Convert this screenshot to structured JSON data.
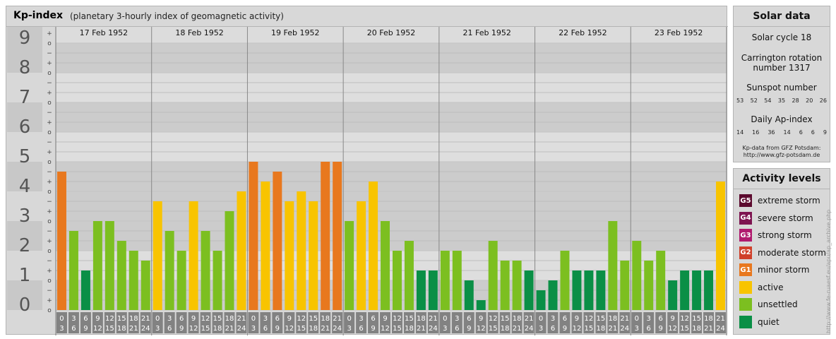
{
  "header": {
    "title": "Kp-index",
    "subtitle": "(planetary 3-hourly index of geomagnetic activity)"
  },
  "chart_data": {
    "type": "bar",
    "title": "Kp-index",
    "subtitle": "(planetary 3-hourly index of geomagnetic activity)",
    "y_major_ticks": [
      "0",
      "1",
      "2",
      "3",
      "4",
      "5",
      "6",
      "7",
      "8",
      "9"
    ],
    "y_minor_marks": [
      "+",
      "o",
      "−"
    ],
    "ylim": [
      0,
      9.33
    ],
    "days": [
      "17 Feb 1952",
      "18 Feb 1952",
      "19 Feb 1952",
      "20 Feb 1952",
      "21 Feb 1952",
      "22 Feb 1952",
      "23 Feb 1952"
    ],
    "interval_labels": [
      [
        "0",
        "3"
      ],
      [
        "3",
        "6"
      ],
      [
        "6",
        "9"
      ],
      [
        "9",
        "12"
      ],
      [
        "12",
        "15"
      ],
      [
        "15",
        "18"
      ],
      [
        "18",
        "21"
      ],
      [
        "21",
        "24"
      ]
    ],
    "values": [
      [
        4.667,
        2.667,
        1.333,
        3.0,
        3.0,
        2.333,
        2.0,
        1.667
      ],
      [
        3.667,
        2.667,
        2.0,
        3.667,
        2.667,
        2.0,
        3.333,
        4.0
      ],
      [
        5.0,
        4.333,
        4.667,
        3.667,
        4.0,
        3.667,
        5.0,
        5.0
      ],
      [
        3.0,
        3.667,
        4.333,
        3.0,
        2.0,
        2.333,
        1.333,
        1.333
      ],
      [
        2.0,
        2.0,
        1.0,
        0.333,
        2.333,
        1.667,
        1.667,
        1.333
      ],
      [
        0.667,
        1.0,
        2.0,
        1.333,
        1.333,
        1.333,
        3.0,
        1.667
      ],
      [
        2.333,
        1.667,
        2.0,
        1.0,
        1.333,
        1.333,
        1.333,
        4.333
      ]
    ],
    "grid": true,
    "legend": "right"
  },
  "solar": {
    "title": "Solar data",
    "cycle": "Solar cycle 18",
    "carrington_line1": "Carrington rotation",
    "carrington_line2": "number 1317",
    "sunspot_label": "Sunspot number",
    "sunspot_values": [
      "53",
      "52",
      "54",
      "35",
      "28",
      "20",
      "26"
    ],
    "ap_label": "Daily Ap-index",
    "ap_values": [
      "14",
      "16",
      "36",
      "14",
      "6",
      "6",
      "9"
    ],
    "credit_line1": "Kp-data from GFZ Potsdam:",
    "credit_line2": "http://www.gfz-potsdam.de"
  },
  "activity": {
    "title": "Activity levels",
    "items": [
      {
        "code": "G5",
        "label": "extreme storm",
        "color": "#5c0a2e"
      },
      {
        "code": "G4",
        "label": "severe storm",
        "color": "#7d1450"
      },
      {
        "code": "G3",
        "label": "strong storm",
        "color": "#b01a6e"
      },
      {
        "code": "G2",
        "label": "moderate storm",
        "color": "#d0402a"
      },
      {
        "code": "G1",
        "label": "minor storm",
        "color": "#e8781e"
      },
      {
        "code": "",
        "label": "active",
        "color": "#f8c400"
      },
      {
        "code": "",
        "label": "unsettled",
        "color": "#7cbf20"
      },
      {
        "code": "",
        "label": "quiet",
        "color": "#0a8f46"
      }
    ]
  },
  "watermark": "http://www.fe-ruaesf.eu/apu/ap_archive.php"
}
